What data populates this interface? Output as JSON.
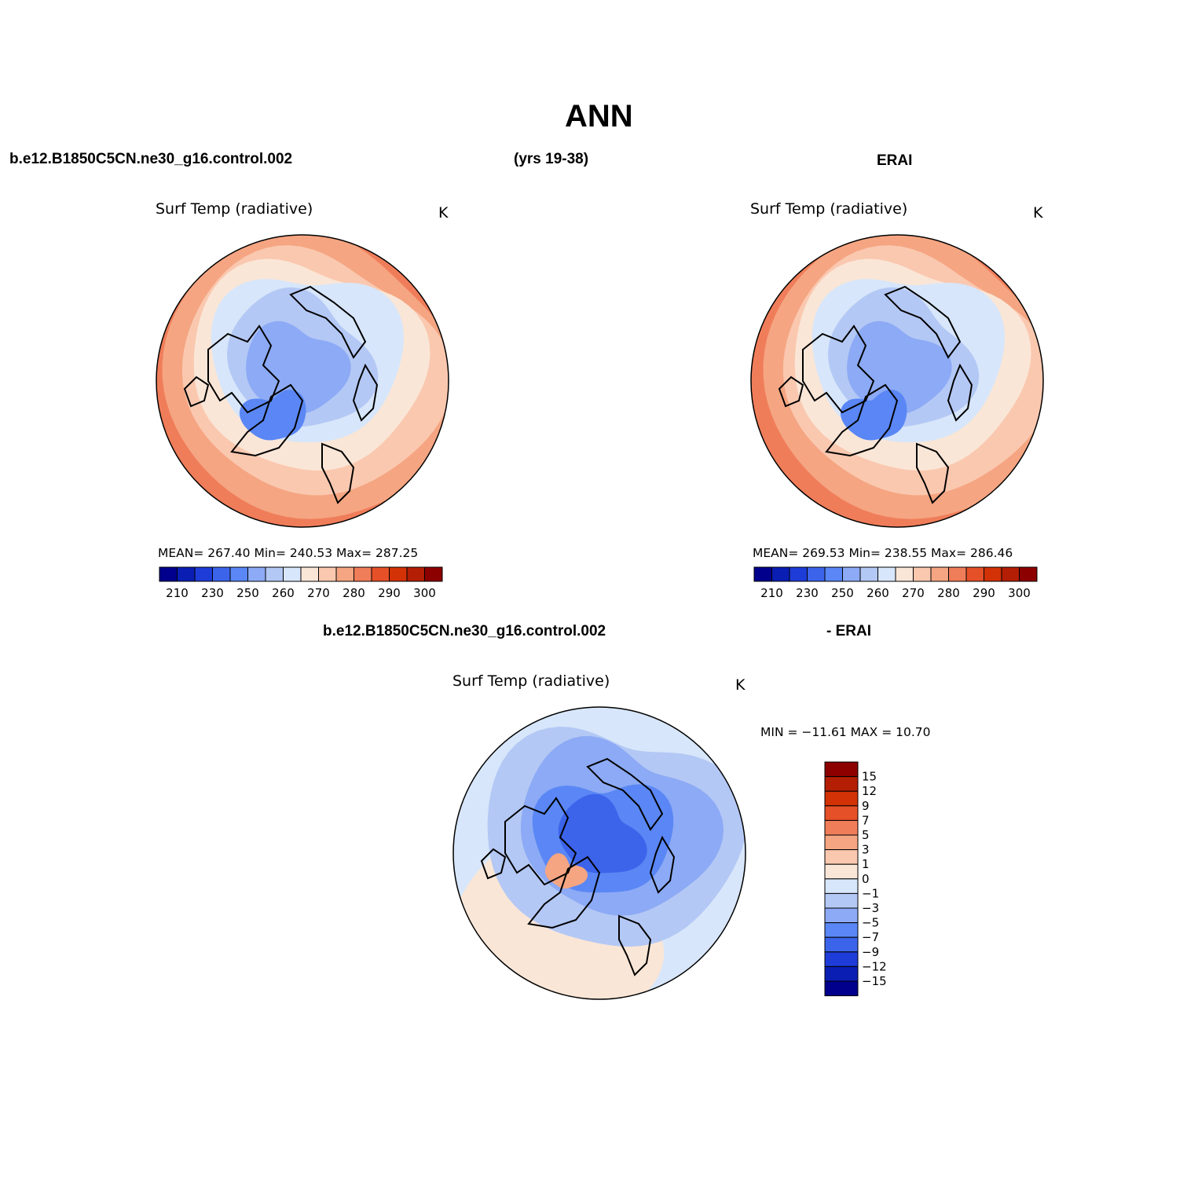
{
  "page": {
    "title": "ANN",
    "case_name": "b.e12.B1850C5CN.ne30_g16.control.002",
    "years": "(yrs 19-38)",
    "obs_name": "ERAI",
    "diff_case_name": "b.e12.B1850C5CN.ne30_g16.control.002",
    "diff_obs_name": "- ERAI"
  },
  "colors": {
    "abs_palette": [
      "#00008c",
      "#0a1eb4",
      "#1e3cd7",
      "#3c64eb",
      "#5a87f5",
      "#8caaf5",
      "#b4c8f5",
      "#d7e6fa",
      "#fae6d7",
      "#fac8af",
      "#f5a582",
      "#f07d5a",
      "#e65028",
      "#d23205",
      "#b41e05",
      "#8c0000"
    ],
    "diff_palette": [
      "#00008c",
      "#0a1eb4",
      "#1e3cd7",
      "#3c64eb",
      "#5a87f5",
      "#8caaf5",
      "#b4c8f5",
      "#d7e6fa",
      "#fae6d7",
      "#fac8af",
      "#f5a582",
      "#f07d5a",
      "#e65028",
      "#d23205",
      "#b41e05",
      "#8c0000"
    ],
    "coast": "#000000"
  },
  "panels": [
    {
      "id": "model",
      "variable": "Surf Temp (radiative)",
      "units": "K",
      "stats": "MEAN= 267.40   Min= 240.53   Max= 287.25",
      "colorbar_labels": [
        "210",
        "230",
        "250",
        "260",
        "270",
        "280",
        "290",
        "300"
      ]
    },
    {
      "id": "obs",
      "variable": "Surf Temp (radiative)",
      "units": "K",
      "stats": "MEAN= 269.53   Min= 238.55   Max= 286.46",
      "colorbar_labels": [
        "210",
        "230",
        "250",
        "260",
        "270",
        "280",
        "290",
        "300"
      ]
    },
    {
      "id": "diff",
      "variable": "Surf Temp (radiative)",
      "units": "K",
      "stats": "MIN = −11.61  MAX =   10.70",
      "colorbar_labels": [
        "15",
        "12",
        "9",
        "7",
        "5",
        "3",
        "1",
        "0",
        "−1",
        "−3",
        "−5",
        "−7",
        "−9",
        "−12",
        "−15"
      ]
    }
  ]
}
